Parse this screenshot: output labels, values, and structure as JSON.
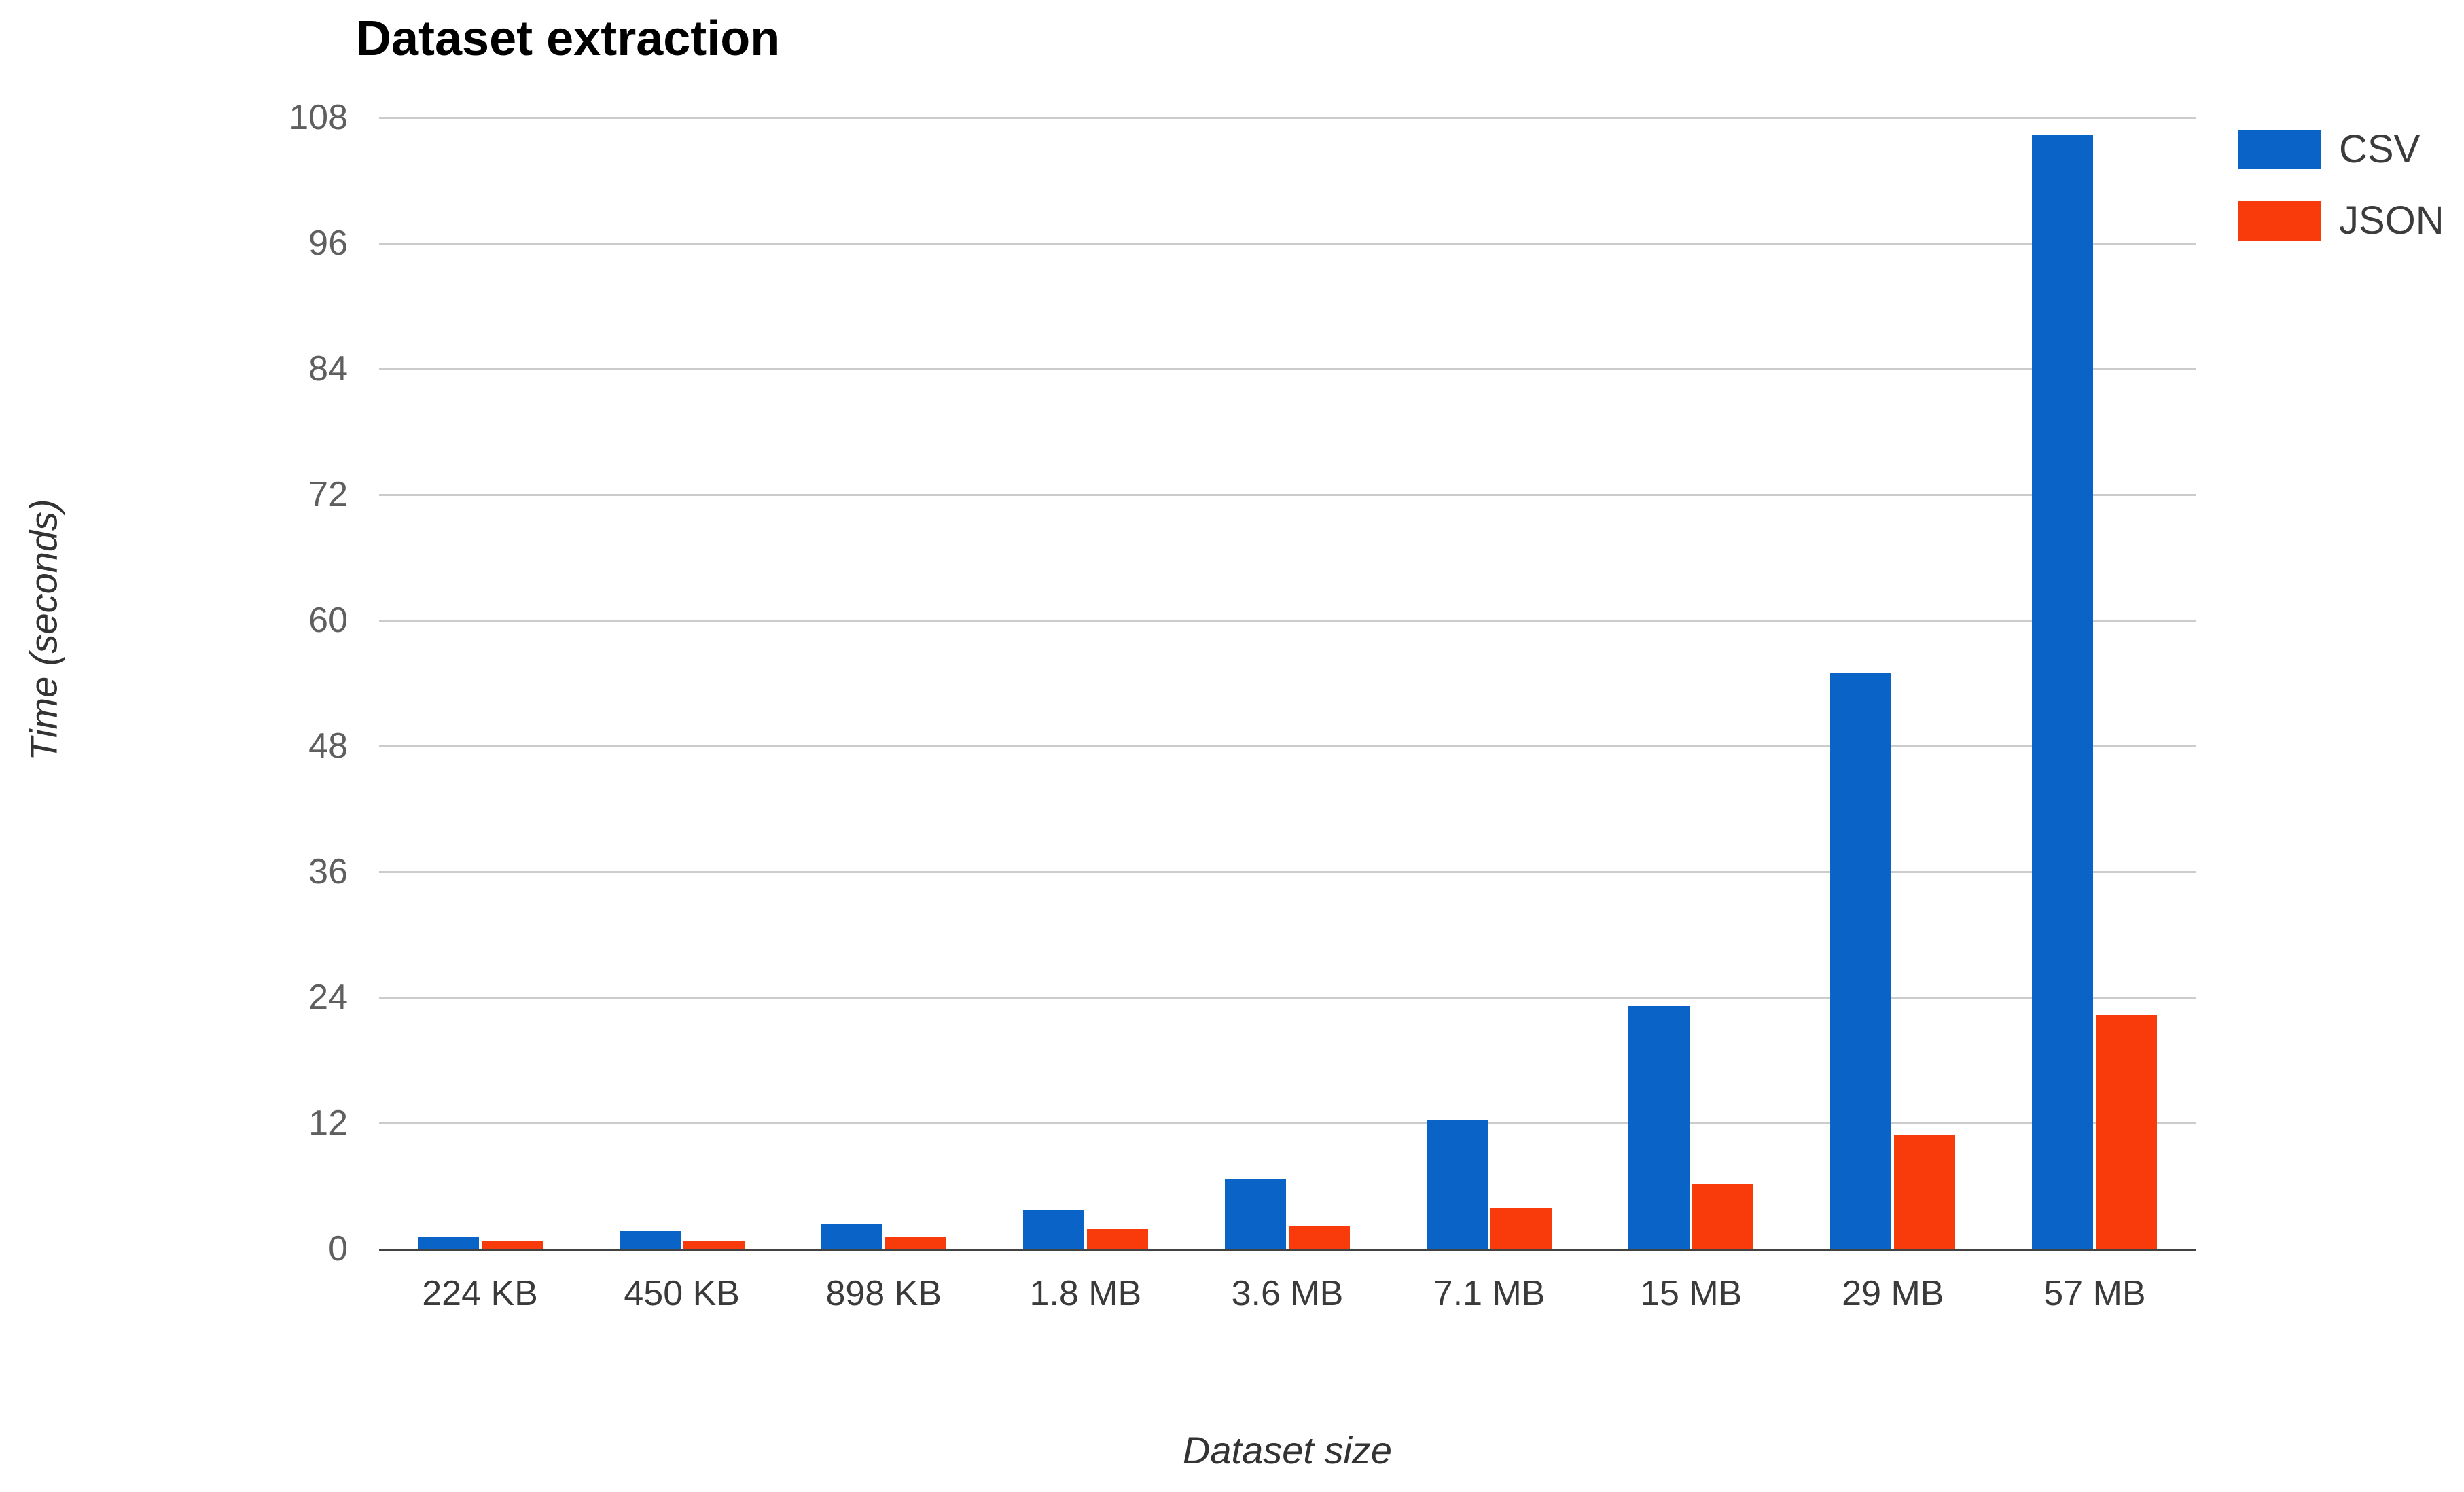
{
  "chart_data": {
    "type": "bar",
    "title": "Dataset extraction",
    "xlabel": "Dataset size",
    "ylabel": "Time (seconds)",
    "categories": [
      "224 KB",
      "450 KB",
      "898 KB",
      "1.8 MB",
      "3.6 MB",
      "7.1 MB",
      "15 MB",
      "29 MB",
      "57 MB"
    ],
    "series": [
      {
        "name": "CSV",
        "color": "#0A64C8",
        "values": [
          1.1,
          1.7,
          2.4,
          3.7,
          6.6,
          12.3,
          23.2,
          55.0,
          106.4
        ]
      },
      {
        "name": "JSON",
        "color": "#F93A0B",
        "values": [
          0.7,
          0.8,
          1.1,
          1.9,
          2.2,
          3.9,
          6.2,
          10.9,
          22.3
        ]
      }
    ],
    "ylim": [
      0,
      108
    ],
    "yticks": [
      0,
      12,
      24,
      36,
      48,
      60,
      72,
      84,
      96,
      108
    ],
    "grid": true,
    "legend_position": "top-right",
    "gridline_color": "#cccccc",
    "axis_line_color": "#424242"
  }
}
